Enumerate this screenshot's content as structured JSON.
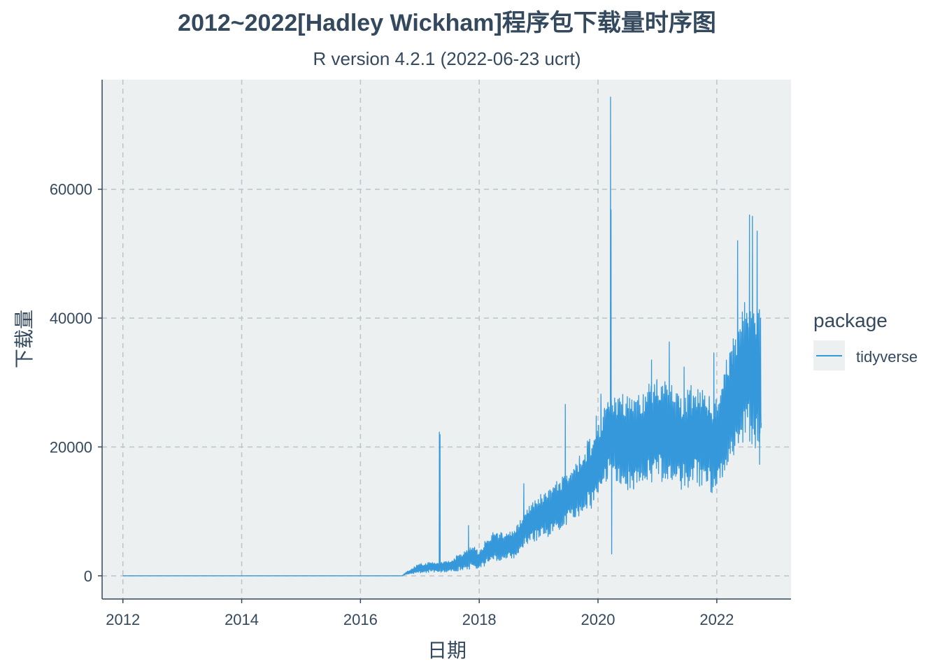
{
  "chart_data": {
    "type": "line",
    "title": "2012~2022[Hadley Wickham]程序包下载量时序图",
    "subtitle": "R version 4.2.1 (2022-06-23 ucrt)",
    "xlabel": "日期",
    "ylabel": "下载量",
    "xlim": [
      2011.65,
      2023.25
    ],
    "ylim": [
      -3600,
      77000
    ],
    "x_ticks": [
      2012,
      2014,
      2016,
      2018,
      2020,
      2022
    ],
    "x_tick_labels": [
      "2012",
      "2014",
      "2016",
      "2018",
      "2020",
      "2022"
    ],
    "y_ticks": [
      0,
      20000,
      40000,
      60000
    ],
    "y_tick_labels": [
      "0",
      "20000",
      "40000",
      "60000"
    ],
    "grid": true,
    "legend": {
      "title": "package",
      "position": "right"
    },
    "colors": {
      "line": "#3498db",
      "panel": "#ecf0f1",
      "grid": "#bdc3c7",
      "text": "#34495e"
    },
    "series": [
      {
        "name": "tidyverse",
        "anchors": [
          [
            2012.0,
            0,
            0
          ],
          [
            2016.7,
            0,
            0
          ],
          [
            2016.75,
            300,
            200
          ],
          [
            2017.0,
            1200,
            1000
          ],
          [
            2017.5,
            1500,
            1200
          ],
          [
            2017.9,
            3000,
            2500
          ],
          [
            2018.0,
            2500,
            2000
          ],
          [
            2018.2,
            4500,
            3000
          ],
          [
            2018.6,
            4800,
            3200
          ],
          [
            2018.8,
            8000,
            4000
          ],
          [
            2019.2,
            10000,
            5000
          ],
          [
            2019.6,
            13000,
            6000
          ],
          [
            2019.95,
            17000,
            8000
          ],
          [
            2020.2,
            22000,
            9000
          ],
          [
            2020.6,
            20000,
            10000
          ],
          [
            2021.0,
            23000,
            11000
          ],
          [
            2021.4,
            21000,
            10000
          ],
          [
            2021.7,
            22000,
            11000
          ],
          [
            2022.0,
            20000,
            10000
          ],
          [
            2022.2,
            26000,
            12000
          ],
          [
            2022.5,
            32000,
            15000
          ],
          [
            2022.75,
            30000,
            15000
          ]
        ],
        "spikes": [
          [
            2017.33,
            22300
          ],
          [
            2017.34,
            21900
          ],
          [
            2017.82,
            7800
          ],
          [
            2018.38,
            6600
          ],
          [
            2018.75,
            14300
          ],
          [
            2019.45,
            26600
          ],
          [
            2019.97,
            24800
          ],
          [
            2020.05,
            28200
          ],
          [
            2020.21,
            74300
          ],
          [
            2020.22,
            56800
          ],
          [
            2020.23,
            3400
          ],
          [
            2020.9,
            33500
          ],
          [
            2021.2,
            36300
          ],
          [
            2021.45,
            32400
          ],
          [
            2021.95,
            34600
          ],
          [
            2022.35,
            52000
          ],
          [
            2022.55,
            56000
          ],
          [
            2022.6,
            55800
          ],
          [
            2022.68,
            53500
          ],
          [
            2022.72,
            17300
          ]
        ]
      }
    ]
  }
}
